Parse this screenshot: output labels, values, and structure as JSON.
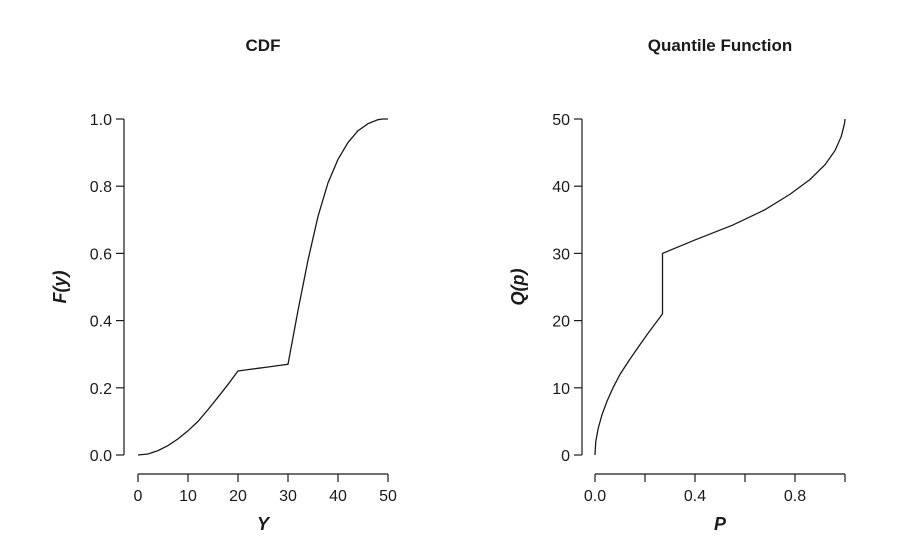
{
  "chart_data": [
    {
      "type": "line",
      "title": "CDF",
      "xlabel": "Y",
      "ylabel": "F(y)",
      "xlim": [
        0,
        50
      ],
      "ylim": [
        0,
        1
      ],
      "xticks": [
        0,
        10,
        20,
        30,
        40,
        50
      ],
      "xtick_labels": [
        "0",
        "10",
        "20",
        "30",
        "40",
        "50"
      ],
      "yticks": [
        0,
        0.2,
        0.4,
        0.6,
        0.8,
        1.0
      ],
      "ytick_labels": [
        "0.0",
        "0.2",
        "0.4",
        "0.6",
        "0.8",
        "1.0"
      ],
      "grid": false,
      "color": "#1a1a1a",
      "series": [
        {
          "x": [
            0,
            2,
            4,
            6,
            8,
            10,
            12,
            14,
            16,
            18,
            20,
            22,
            24,
            26,
            28,
            30,
            32,
            34,
            36,
            38,
            40,
            42,
            44,
            46,
            48,
            49,
            50
          ],
          "y": [
            0.0,
            0.003,
            0.013,
            0.028,
            0.048,
            0.072,
            0.1,
            0.135,
            0.172,
            0.21,
            0.25,
            0.254,
            0.258,
            0.262,
            0.266,
            0.27,
            0.43,
            0.58,
            0.71,
            0.81,
            0.88,
            0.93,
            0.965,
            0.986,
            0.998,
            1.0,
            1.0
          ]
        }
      ]
    },
    {
      "type": "line",
      "title": "Quantile Function",
      "xlabel": "P",
      "ylabel": "Q(p)",
      "xlim": [
        0,
        1
      ],
      "ylim": [
        0,
        50
      ],
      "xticks": [
        0,
        0.2,
        0.4,
        0.6,
        0.8,
        1.0
      ],
      "xtick_labels": [
        "0.0",
        "",
        "0.4",
        "",
        "0.8",
        ""
      ],
      "yticks": [
        0,
        10,
        20,
        30,
        40,
        50
      ],
      "ytick_labels": [
        "0",
        "10",
        "20",
        "30",
        "40",
        "50"
      ],
      "grid": false,
      "color": "#1a1a1a",
      "series": [
        {
          "x": [
            0,
            0.003,
            0.013,
            0.028,
            0.048,
            0.072,
            0.1,
            0.135,
            0.172,
            0.21,
            0.25,
            0.25,
            0.27,
            0.27,
            0.4,
            0.55,
            0.68,
            0.78,
            0.86,
            0.92,
            0.96,
            0.985,
            0.998,
            1.0
          ],
          "y": [
            0,
            2,
            4,
            6,
            8,
            10,
            12,
            14,
            16,
            18,
            20,
            20,
            21,
            30,
            32,
            34.2,
            36.5,
            38.8,
            41.0,
            43.2,
            45.3,
            47.4,
            49.3,
            50
          ]
        }
      ]
    }
  ]
}
